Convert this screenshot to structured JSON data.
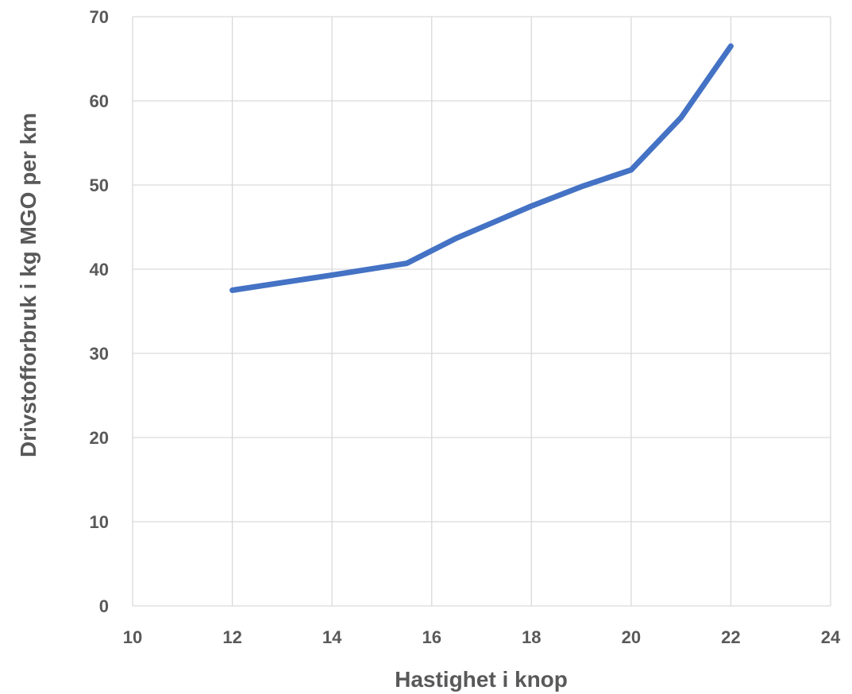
{
  "chart_data": {
    "type": "line",
    "title": "",
    "xlabel": "Hastighet i knop",
    "ylabel": "Drivstofforbruk i kg MGO per km",
    "xlim": [
      10,
      24
    ],
    "ylim": [
      0,
      70
    ],
    "x_ticks": [
      10,
      12,
      14,
      16,
      18,
      20,
      22,
      24
    ],
    "y_ticks": [
      0,
      10,
      20,
      30,
      40,
      50,
      60,
      70
    ],
    "grid": true,
    "legend": "none",
    "series": [
      {
        "color": "#4472c4",
        "x": [
          12,
          14,
          15.5,
          16.5,
          18,
          19,
          20,
          21,
          22
        ],
        "y": [
          37.5,
          39.3,
          40.7,
          43.7,
          47.5,
          49.8,
          51.8,
          58,
          66.5
        ]
      }
    ]
  }
}
